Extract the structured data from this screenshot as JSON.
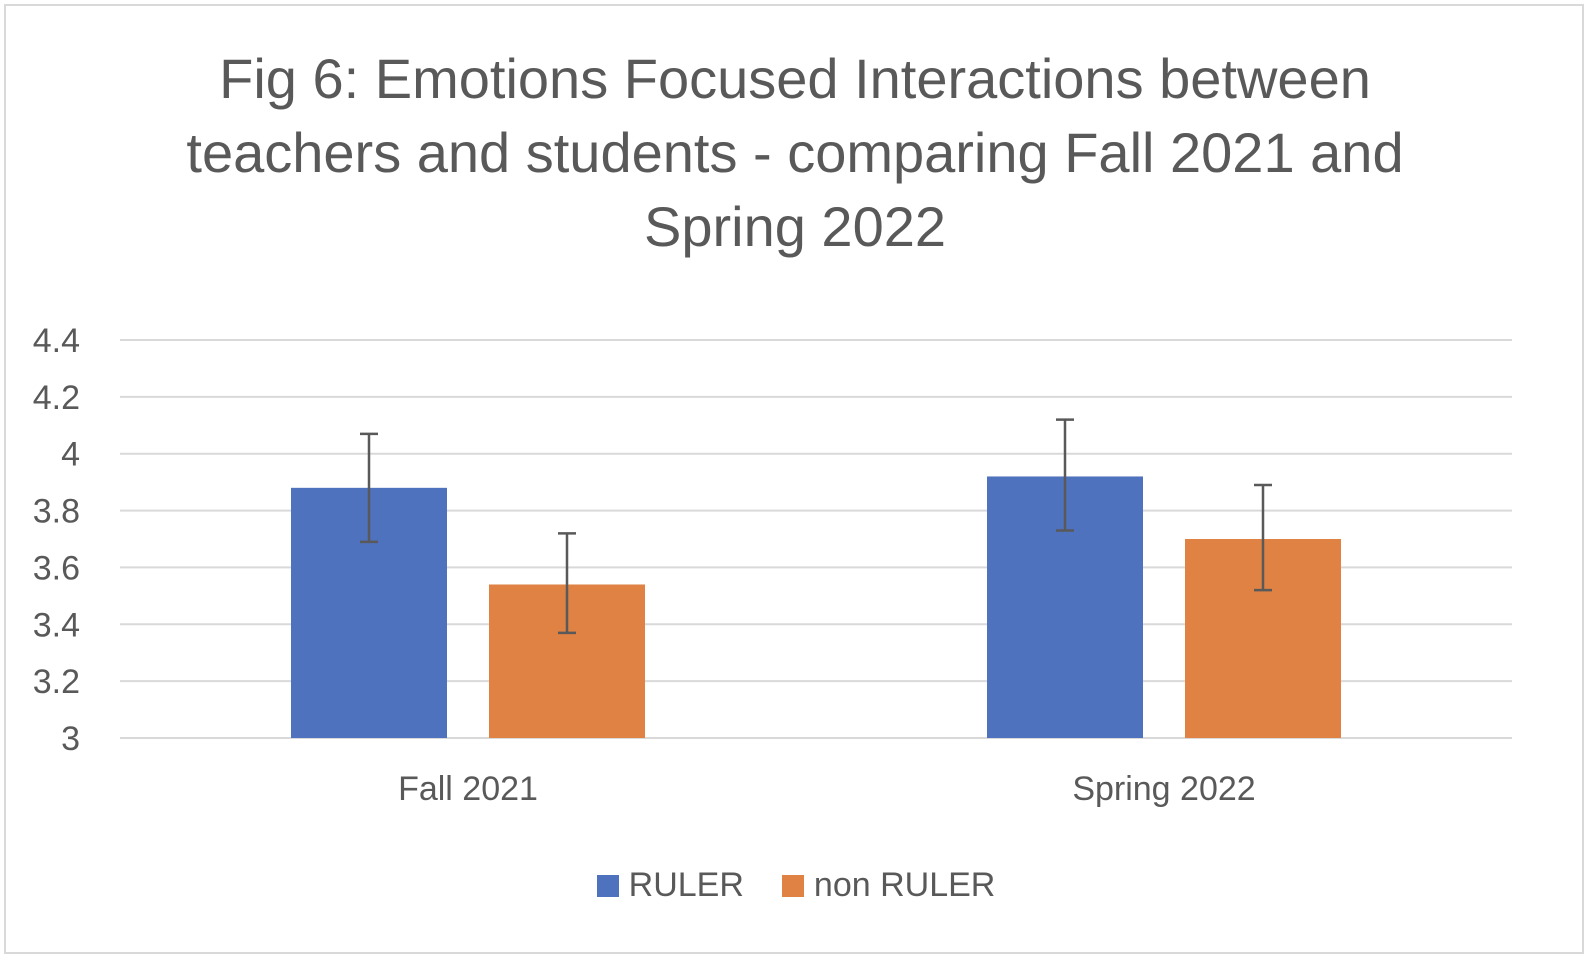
{
  "chart_data": {
    "type": "bar",
    "title": "Fig 6: Emotions Focused Interactions between teachers and students - comparing Fall 2021 and Spring 2022",
    "categories": [
      "Fall 2021",
      "Spring 2022"
    ],
    "series": [
      {
        "name": "RULER",
        "color": "#4f72be",
        "values": [
          3.88,
          3.92
        ],
        "error_low": [
          3.69,
          3.73
        ],
        "error_high": [
          4.07,
          4.12
        ]
      },
      {
        "name": "non RULER",
        "color": "#df8244",
        "values": [
          3.54,
          3.7
        ],
        "error_low": [
          3.37,
          3.52
        ],
        "error_high": [
          3.72,
          3.89
        ]
      }
    ],
    "ylim": [
      3,
      4.4
    ],
    "yticks": [
      "3",
      "3.2",
      "3.4",
      "3.6",
      "3.8",
      "4",
      "4.2",
      "4.4"
    ],
    "xlabel": "",
    "ylabel": "",
    "grid": true,
    "gridline_color": "#d9d9d9",
    "errorbar_color": "#595959",
    "legend_position": "bottom"
  }
}
